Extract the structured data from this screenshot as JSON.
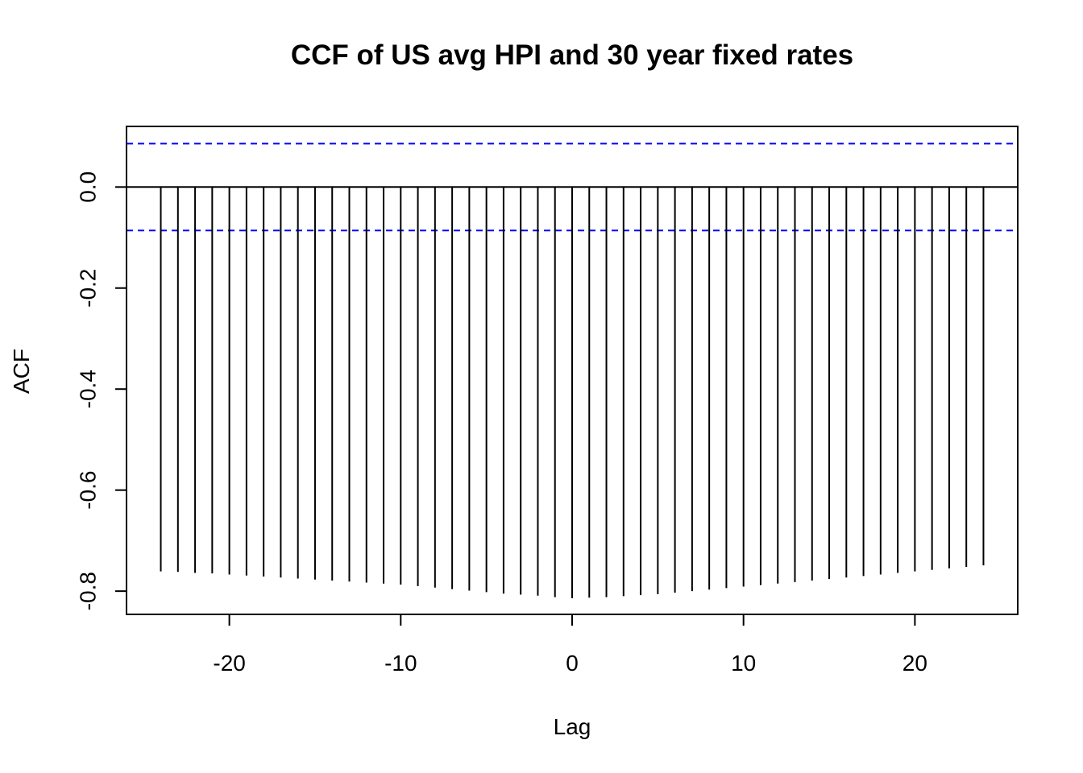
{
  "chart_data": {
    "type": "bar",
    "title": "CCF of US avg HPI and 30 year fixed rates",
    "xlabel": "Lag",
    "ylabel": "ACF",
    "xlim": [
      -26,
      26
    ],
    "ylim": [
      -0.846,
      0.12
    ],
    "x_ticks": [
      -20,
      -10,
      0,
      10,
      20
    ],
    "x_tick_labels": [
      "-20",
      "-10",
      "0",
      "10",
      "20"
    ],
    "y_ticks": [
      -0.8,
      -0.6,
      -0.4,
      -0.2,
      0.0
    ],
    "y_tick_labels": [
      "-0.8",
      "-0.6",
      "-0.4",
      "-0.2",
      "0.0"
    ],
    "x": [
      -24,
      -23,
      -22,
      -21,
      -20,
      -19,
      -18,
      -17,
      -16,
      -15,
      -14,
      -13,
      -12,
      -11,
      -10,
      -9,
      -8,
      -7,
      -6,
      -5,
      -4,
      -3,
      -2,
      -1,
      0,
      1,
      2,
      3,
      4,
      5,
      6,
      7,
      8,
      9,
      10,
      11,
      12,
      13,
      14,
      15,
      16,
      17,
      18,
      19,
      20,
      21,
      22,
      23,
      24
    ],
    "values": [
      -0.761,
      -0.762,
      -0.764,
      -0.765,
      -0.767,
      -0.769,
      -0.771,
      -0.773,
      -0.775,
      -0.777,
      -0.779,
      -0.781,
      -0.783,
      -0.785,
      -0.787,
      -0.79,
      -0.793,
      -0.796,
      -0.799,
      -0.802,
      -0.805,
      -0.807,
      -0.809,
      -0.812,
      -0.814,
      -0.813,
      -0.812,
      -0.81,
      -0.808,
      -0.806,
      -0.803,
      -0.8,
      -0.797,
      -0.794,
      -0.791,
      -0.788,
      -0.785,
      -0.782,
      -0.779,
      -0.776,
      -0.773,
      -0.77,
      -0.767,
      -0.764,
      -0.761,
      -0.758,
      -0.755,
      -0.752,
      -0.749
    ],
    "ci_upper": 0.086,
    "ci_lower": -0.086,
    "ci_color": "#0000ff",
    "spike_color": "#000000",
    "grid": false,
    "legend": "none"
  }
}
